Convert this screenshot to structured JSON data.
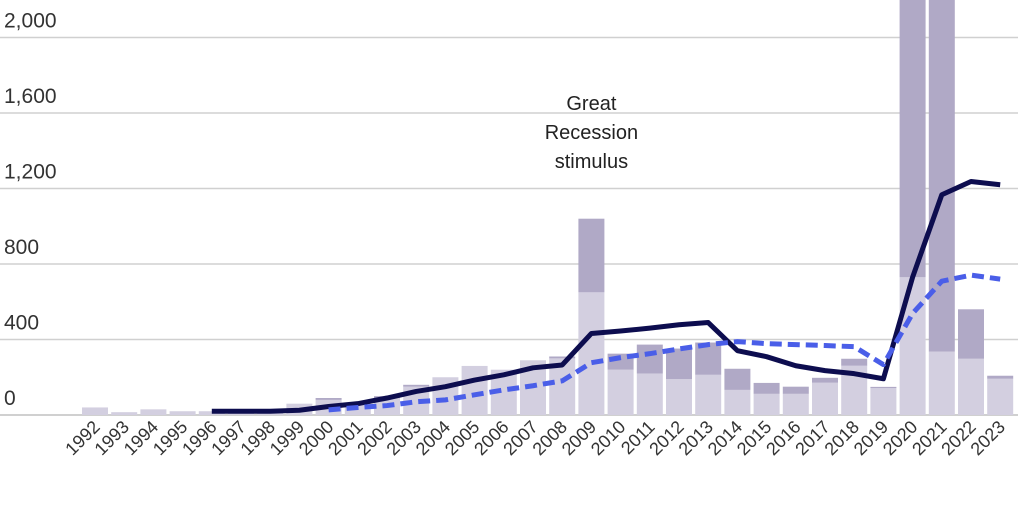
{
  "chart_data": {
    "type": "bar",
    "title": "",
    "xlabel": "",
    "ylabel": "",
    "ylim": [
      0,
      2200
    ],
    "grid": true,
    "yticks": [
      0,
      400,
      800,
      1200,
      1600,
      2000
    ],
    "ytick_labels": [
      "0",
      "400",
      "800",
      "1,200",
      "1,600",
      "2,000"
    ],
    "categories": [
      "1992",
      "1993",
      "1994",
      "1995",
      "1996",
      "1997",
      "1998",
      "1999",
      "2000",
      "2001",
      "2002",
      "2003",
      "2004",
      "2005",
      "2006",
      "2007",
      "2008",
      "2009",
      "2010",
      "2011",
      "2012",
      "2013",
      "2014",
      "2015",
      "2016",
      "2017",
      "2018",
      "2019",
      "2020",
      "2021",
      "2022",
      "2023"
    ],
    "bar_series": [
      {
        "values": [
          40,
          15,
          30,
          20,
          20,
          20,
          20,
          60,
          80,
          60,
          90,
          150,
          200,
          260,
          240,
          290,
          300,
          650,
          240,
          220,
          190,
          213,
          133,
          112,
          112,
          171,
          261,
          143,
          730,
          336,
          298,
          192
        ],
        "color": "#d3cfe0"
      },
      {
        "values": [
          0,
          0,
          0,
          0,
          0,
          0,
          0,
          0,
          10,
          0,
          10,
          10,
          0,
          0,
          0,
          0,
          10,
          390,
          85,
          153,
          162,
          171,
          112,
          58,
          38,
          26,
          37,
          6,
          1770,
          2164,
          262,
          16
        ],
        "color": "#b0a9c6"
      }
    ],
    "line_series": [
      {
        "style": "solid",
        "color": "#0d0d4f",
        "values": [
          null,
          null,
          null,
          null,
          20,
          20,
          20,
          25,
          45,
          60,
          90,
          125,
          150,
          185,
          213,
          250,
          265,
          432,
          445,
          460,
          478,
          490,
          341,
          309,
          261,
          235,
          219,
          192,
          730,
          1167,
          1237,
          1220
        ]
      },
      {
        "style": "dashed",
        "color": "#4a5ee8",
        "values": [
          null,
          null,
          null,
          null,
          null,
          null,
          null,
          null,
          27,
          40,
          50,
          70,
          80,
          107,
          133,
          155,
          181,
          277,
          304,
          325,
          350,
          373,
          389,
          378,
          373,
          368,
          362,
          267,
          538,
          709,
          741,
          720
        ]
      }
    ],
    "annotations": [
      {
        "year": "2009",
        "lines": [
          "Great",
          "Recession",
          "stimulus"
        ]
      }
    ]
  }
}
